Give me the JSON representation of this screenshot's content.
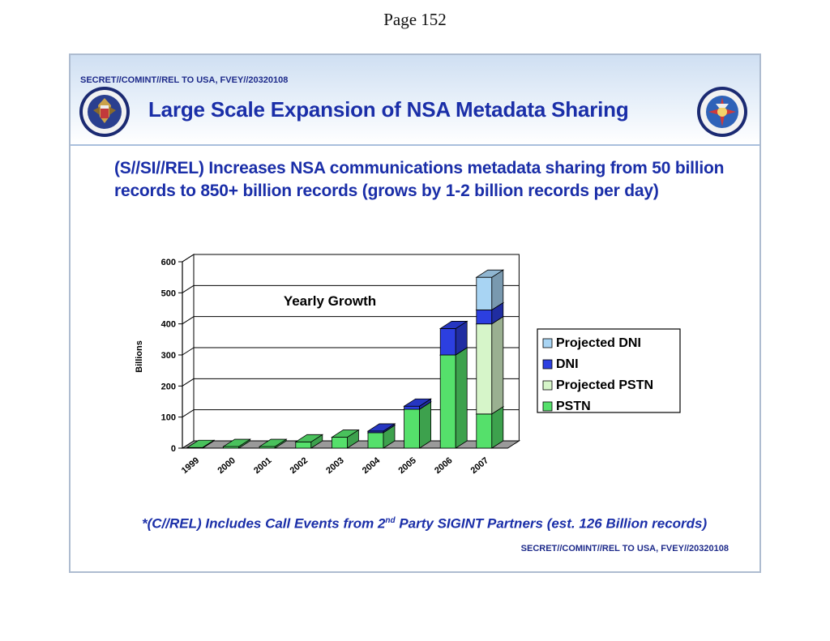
{
  "page": {
    "number_label": "Page 152"
  },
  "slide": {
    "classification_top": "SECRET//COMINT//REL TO USA, FVEY//20320108",
    "classification_bottom": "SECRET//COMINT//REL TO USA, FVEY//20320108",
    "title": "Large Scale Expansion of NSA Metadata Sharing",
    "subtitle": "(S//SI//REL) Increases NSA communications metadata sharing from 50 billion records to 850+ billion records (grows by 1-2 billion records per day)",
    "footnote": {
      "before": "*(C//REL) Includes Call Events from 2",
      "sup": "nd",
      "after": " Party SIGINT Partners (est. 126 Billion records)"
    },
    "seals": {
      "left": "nsa-seal-icon",
      "right": "cia-seal-icon"
    }
  },
  "chart_data": {
    "type": "bar",
    "stacked": true,
    "three_d": true,
    "title": "Yearly Growth",
    "ylabel": "Billions",
    "xlabel": "",
    "ylim": [
      0,
      600
    ],
    "yticks": [
      "0",
      "100",
      "200",
      "300",
      "400",
      "500",
      "600"
    ],
    "ytick_values": [
      0,
      100,
      200,
      300,
      400,
      500,
      600
    ],
    "grid": true,
    "legend_position": "right",
    "categories": [
      "1999",
      "2000",
      "2001",
      "2002",
      "2003",
      "2004",
      "2005",
      "2006",
      "2007"
    ],
    "series": [
      {
        "name": "PSTN",
        "color": "#55e06b",
        "values": [
          2,
          5,
          5,
          20,
          35,
          50,
          125,
          300,
          110
        ]
      },
      {
        "name": "Projected PSTN",
        "color": "#d6f5c9",
        "values": [
          0,
          0,
          0,
          0,
          0,
          0,
          0,
          0,
          290
        ]
      },
      {
        "name": "DNI",
        "color": "#2c3fe0",
        "values": [
          0,
          0,
          0,
          0,
          0,
          5,
          10,
          85,
          45
        ]
      },
      {
        "name": "Projected DNI",
        "color": "#a8d4f3",
        "values": [
          0,
          0,
          0,
          0,
          0,
          0,
          0,
          0,
          105
        ]
      }
    ],
    "legend_order": [
      "Projected DNI",
      "DNI",
      "Projected PSTN",
      "PSTN"
    ]
  }
}
